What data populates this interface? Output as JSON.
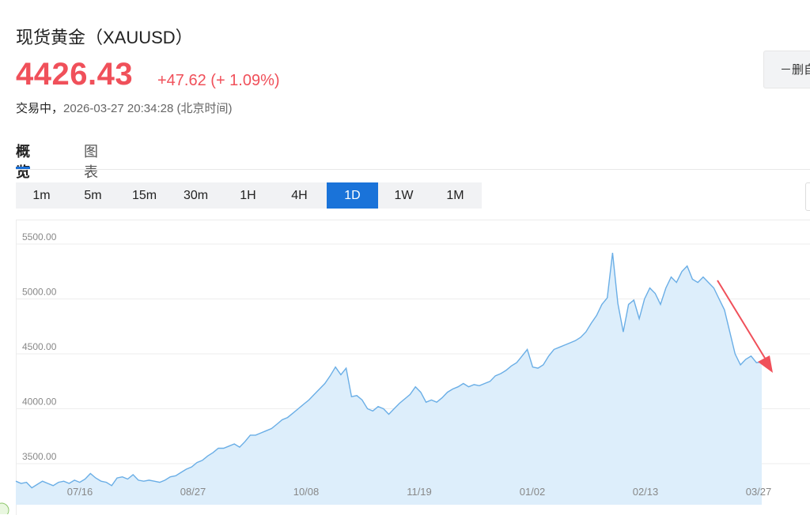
{
  "header": {
    "title": "现货黄金（XAUUSD）",
    "price": "4426.43",
    "change": "+47.62 (+ 1.09%)",
    "status_prefix": "交易中，",
    "timestamp": "2026-03-27 20:34:28 (北京时间)",
    "side_button": "－删自"
  },
  "tabs": [
    {
      "label": "概览",
      "active": true
    },
    {
      "label": "图表",
      "active": false
    }
  ],
  "intervals": [
    {
      "label": "1m",
      "active": false
    },
    {
      "label": "5m",
      "active": false
    },
    {
      "label": "15m",
      "active": false
    },
    {
      "label": "30m",
      "active": false
    },
    {
      "label": "1H",
      "active": false
    },
    {
      "label": "4H",
      "active": false
    },
    {
      "label": "1D",
      "active": true
    },
    {
      "label": "1W",
      "active": false
    },
    {
      "label": "1M",
      "active": false
    }
  ],
  "colors": {
    "up_red": "#f0505a",
    "accent_blue": "#1a73d9",
    "line_blue": "#6aaee6",
    "area_fill": "#ddeefb",
    "arrow_red": "#f0505a"
  },
  "chart_data": {
    "type": "area",
    "ylim": [
      3250,
      5650
    ],
    "yticks": [
      "3500.00",
      "4000.00",
      "4500.00",
      "5000.00",
      "5500.00"
    ],
    "ytick_values": [
      3500,
      4000,
      4500,
      5000,
      5500
    ],
    "xticks": [
      "07/16",
      "08/27",
      "10/08",
      "11/19",
      "01/02",
      "02/13",
      "03/27"
    ],
    "grid": true,
    "series": [
      {
        "values": [
          3340,
          3320,
          3330,
          3280,
          3310,
          3340,
          3320,
          3300,
          3330,
          3340,
          3320,
          3350,
          3330,
          3360,
          3410,
          3370,
          3340,
          3330,
          3300,
          3370,
          3380,
          3360,
          3400,
          3350,
          3340,
          3350,
          3340,
          3330,
          3350,
          3380,
          3390,
          3420,
          3450,
          3470,
          3510,
          3530,
          3570,
          3600,
          3640,
          3640,
          3660,
          3680,
          3650,
          3700,
          3760,
          3760,
          3780,
          3800,
          3820,
          3860,
          3900,
          3920,
          3960,
          4000,
          4040,
          4080,
          4130,
          4180,
          4230,
          4300,
          4380,
          4310,
          4370,
          4110,
          4120,
          4080,
          4000,
          3980,
          4020,
          4000,
          3950,
          4000,
          4050,
          4090,
          4130,
          4200,
          4150,
          4060,
          4080,
          4060,
          4100,
          4150,
          4180,
          4200,
          4230,
          4200,
          4220,
          4210,
          4230,
          4250,
          4300,
          4320,
          4350,
          4390,
          4420,
          4480,
          4540,
          4380,
          4370,
          4400,
          4480,
          4540,
          4560,
          4580,
          4600,
          4620,
          4650,
          4700,
          4780,
          4850,
          4950,
          5010,
          5420,
          4960,
          4700,
          4950,
          4990,
          4820,
          5000,
          5100,
          5050,
          4950,
          5100,
          5200,
          5150,
          5250,
          5300,
          5180,
          5150,
          5200,
          5150,
          5100,
          5000,
          4900,
          4700,
          4500,
          4400,
          4450,
          4480,
          4420,
          4426
        ]
      }
    ]
  }
}
